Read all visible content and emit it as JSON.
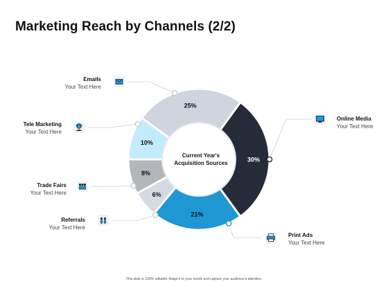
{
  "title": "Marketing Reach by Channels (2/2)",
  "footer": "This slide is 100% editable. Adapt it to your needs and capture your audience's attention.",
  "chart_data": {
    "type": "pie",
    "variant": "donut",
    "center_label": [
      "Current Year's",
      "Acquisition Sources"
    ],
    "slices": [
      {
        "label": "Online Media",
        "value": 30,
        "value_label": "30%",
        "color": "#252b38",
        "text_color": "#ffffff",
        "caption": "Your Text Here",
        "icon": "monitor-icon"
      },
      {
        "label": "Print Ads",
        "value": 21,
        "value_label": "21%",
        "color": "#1e97d2",
        "text_color": "#111111",
        "caption": "Your Text Here",
        "icon": "printer-icon"
      },
      {
        "label": "Referrals",
        "value": 6,
        "value_label": "6%",
        "color": "#d5d9e3",
        "text_color": "#111111",
        "caption": "Your Text Here",
        "icon": "people-icon"
      },
      {
        "label": "Trade Fairs",
        "value": 8,
        "value_label": "8%",
        "color": "#b4b6b9",
        "text_color": "#111111",
        "caption": "Your Text Here",
        "icon": "group-icon"
      },
      {
        "label": "Tele Marketing",
        "value": 10,
        "value_label": "10%",
        "color": "#c2ecfd",
        "text_color": "#111111",
        "caption": "Your Text Here",
        "icon": "headset-icon"
      },
      {
        "label": "Emails",
        "value": 25,
        "value_label": "25%",
        "color": "#d0d4de",
        "text_color": "#111111",
        "caption": "Your Text Here",
        "icon": "envelope-icon"
      }
    ]
  }
}
